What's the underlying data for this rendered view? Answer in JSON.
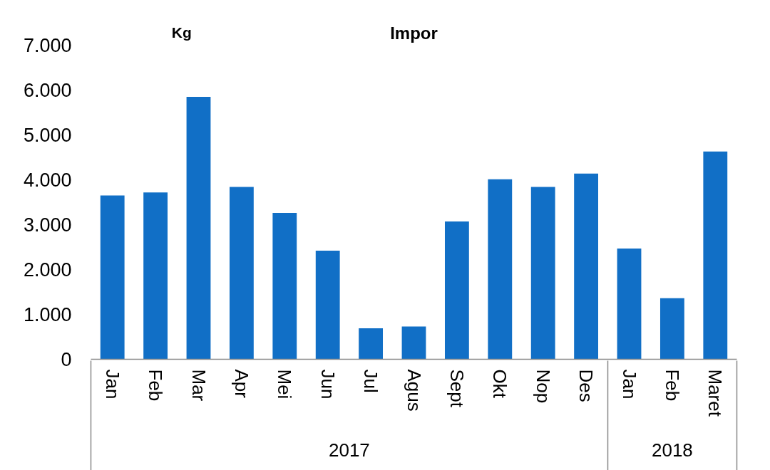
{
  "chart_data": {
    "type": "bar",
    "title": "Impor",
    "ylabel": "Kg",
    "categories": [
      "Jan",
      "Feb",
      "Mar",
      "Apr",
      "Mei",
      "Jun",
      "Jul",
      "Agus",
      "Sept",
      "Okt",
      "Nop",
      "Des",
      "Jan",
      "Feb",
      "Maret"
    ],
    "values": [
      3650,
      3720,
      5850,
      3840,
      3260,
      2420,
      690,
      730,
      3070,
      4010,
      3840,
      4140,
      2470,
      1360,
      4630
    ],
    "color": "#116fc6",
    "ylim": [
      0,
      7000
    ],
    "yticks": [
      0,
      {
        "value": 1000,
        "label": "1.000"
      },
      {
        "value": 2000,
        "label": "2.000"
      },
      {
        "value": 3000,
        "label": "3.000"
      },
      {
        "value": 4000,
        "label": "4.000"
      },
      {
        "value": 5000,
        "label": "5.000"
      },
      {
        "value": 6000,
        "label": "6.000"
      },
      {
        "value": 7000,
        "label": "7.000"
      }
    ],
    "annotations": [
      "2017",
      "2018"
    ]
  }
}
